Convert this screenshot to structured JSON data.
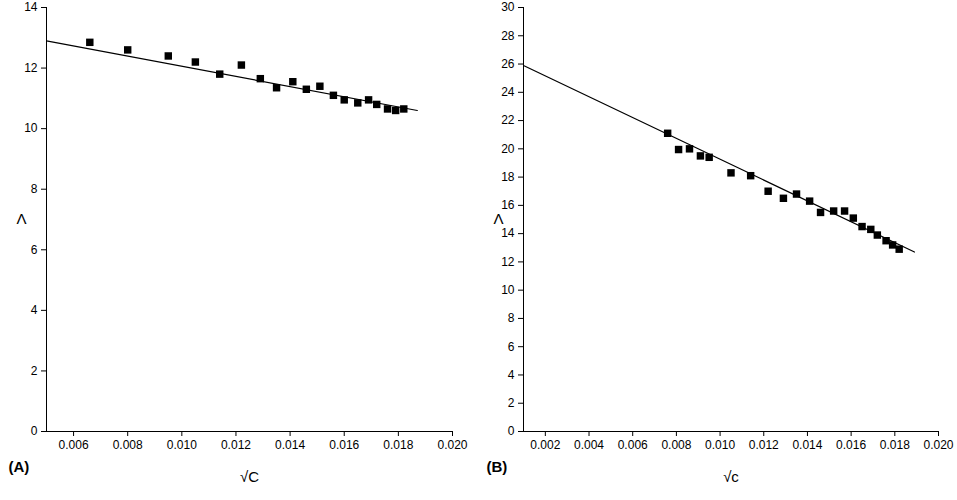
{
  "chart_data": [
    {
      "type": "scatter",
      "panel_label": "(A)",
      "x_label": "√C",
      "y_label": "Λ",
      "xlim": [
        0.005,
        0.02
      ],
      "xticks": [
        0.006,
        0.008,
        {
          "value": 0.01,
          "label": "0.010"
        },
        0.012,
        0.014,
        0.016,
        0.018,
        {
          "value": 0.02,
          "label": "0.020"
        }
      ],
      "ylim": [
        0,
        14
      ],
      "yticks": [
        0,
        2,
        4,
        6,
        8,
        10,
        12,
        14
      ],
      "color": "#000000",
      "marker": "square",
      "x": [
        0.0066,
        0.008,
        0.0095,
        0.0105,
        0.0114,
        0.0122,
        0.0129,
        0.0135,
        0.0141,
        0.0146,
        0.0151,
        0.0156,
        0.016,
        0.0165,
        0.0169,
        0.0172,
        0.0176,
        0.0179,
        0.0182
      ],
      "values": [
        12.85,
        12.6,
        12.4,
        12.2,
        11.8,
        12.1,
        11.65,
        11.35,
        11.55,
        11.3,
        11.4,
        11.1,
        10.95,
        10.85,
        10.95,
        10.8,
        10.65,
        10.6,
        10.65
      ],
      "fit_line": {
        "type": "line",
        "color": "#000000",
        "line_style": "solid",
        "x": [
          0.005,
          0.0187
        ],
        "values": [
          12.9,
          10.6
        ]
      }
    },
    {
      "type": "scatter",
      "panel_label": "(B)",
      "x_label": "√c",
      "y_label": "Λ",
      "xlim": [
        0.001,
        0.02
      ],
      "xticks": [
        {
          "value": 0.002,
          "label": "0.002"
        },
        0.004,
        0.006,
        0.008,
        {
          "value": 0.01,
          "label": "0.010"
        },
        0.012,
        0.014,
        0.016,
        0.018,
        {
          "value": 0.02,
          "label": "0.020"
        }
      ],
      "ylim": [
        0,
        30
      ],
      "yticks": [
        0,
        2,
        4,
        6,
        8,
        10,
        12,
        14,
        16,
        18,
        20,
        22,
        24,
        26,
        28,
        30
      ],
      "color": "#000000",
      "marker": "square",
      "x": [
        0.0076,
        0.0081,
        0.0086,
        0.0091,
        0.0095,
        0.0105,
        0.0114,
        0.0122,
        0.0129,
        0.0135,
        0.0141,
        0.0146,
        0.0152,
        0.0157,
        0.0161,
        0.0165,
        0.0169,
        0.0172,
        0.0176,
        0.0179,
        0.0182
      ],
      "values": [
        21.1,
        19.95,
        20.0,
        19.5,
        19.4,
        18.3,
        18.1,
        17.0,
        16.5,
        16.8,
        16.3,
        15.5,
        15.6,
        15.6,
        15.1,
        14.5,
        14.3,
        13.9,
        13.5,
        13.2,
        12.9
      ],
      "fit_line": {
        "type": "line",
        "color": "#000000",
        "line_style": "solid",
        "x": [
          0.001,
          0.0189
        ],
        "values": [
          25.9,
          12.7
        ]
      }
    }
  ]
}
